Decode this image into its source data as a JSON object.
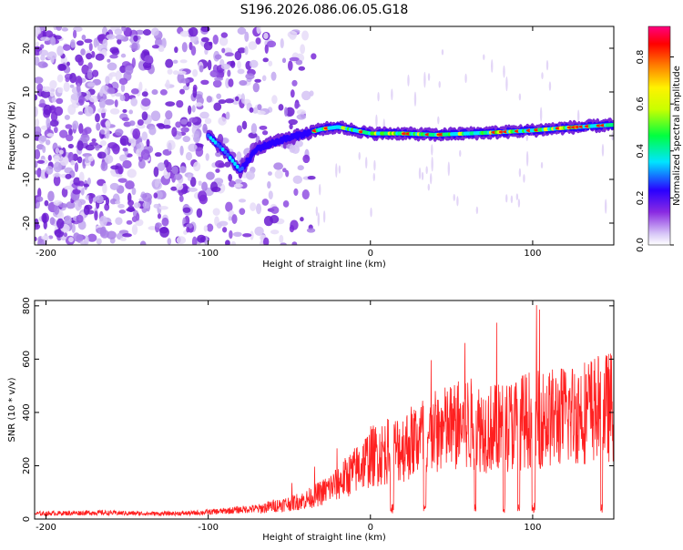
{
  "title": "S196.2026.086.06.05.G18",
  "chart_data": [
    {
      "type": "heatmap",
      "xlabel": "Height of straight line (km)",
      "ylabel": "Frequency (Hz)",
      "xlim": [
        -207,
        150
      ],
      "ylim": [
        -25,
        25
      ],
      "x_ticks": [
        -200,
        -100,
        0,
        100
      ],
      "y_ticks": [
        -20,
        -10,
        0,
        10,
        20
      ],
      "colorbar": {
        "label": "Normalized spectral amplitude",
        "range": [
          0,
          0.93
        ],
        "ticks": [
          0.0,
          0.2,
          0.4,
          0.6,
          0.8
        ],
        "colormap": [
          "#ffffff",
          "#c9b0f5",
          "#8a2be2",
          "#2a00ff",
          "#00e5ff",
          "#00ff40",
          "#fff200",
          "#ff7f00",
          "#ff0000",
          "#ff0080"
        ]
      },
      "ridge": [
        {
          "x": -100,
          "y": 0
        },
        {
          "x": -90,
          "y": -3.5
        },
        {
          "x": -80,
          "y": -8
        },
        {
          "x": -70,
          "y": -3
        },
        {
          "x": -55,
          "y": -1
        },
        {
          "x": -45,
          "y": 0
        },
        {
          "x": -30,
          "y": 1.5
        },
        {
          "x": -20,
          "y": 2
        },
        {
          "x": 0,
          "y": 0.5
        },
        {
          "x": 20,
          "y": 0.5
        },
        {
          "x": 40,
          "y": 0.2
        },
        {
          "x": 60,
          "y": 0.5
        },
        {
          "x": 80,
          "y": 0.8
        },
        {
          "x": 100,
          "y": 1.2
        },
        {
          "x": 120,
          "y": 1.8
        },
        {
          "x": 150,
          "y": 2.5
        }
      ],
      "noise_region": [
        -207,
        -35
      ]
    },
    {
      "type": "line",
      "xlabel": "Height of straight line (km)",
      "ylabel": "SNR (10 * v/v)",
      "xlim": [
        -207,
        150
      ],
      "ylim": [
        0,
        820
      ],
      "x_ticks": [
        -200,
        -100,
        0,
        100
      ],
      "y_ticks": [
        0,
        200,
        400,
        600,
        800
      ],
      "color": "#ff2020",
      "series": [
        {
          "x": [
            -207,
            -190,
            -170,
            -150,
            -130,
            -110,
            -90,
            -70,
            -60,
            -50,
            -40,
            -30,
            -20,
            -10,
            0,
            10,
            20,
            30,
            40,
            50,
            60,
            70,
            80,
            90,
            100,
            110,
            120,
            130,
            140,
            150
          ],
          "y": [
            20,
            22,
            24,
            22,
            20,
            22,
            30,
            40,
            55,
            65,
            80,
            110,
            150,
            200,
            260,
            280,
            300,
            340,
            360,
            380,
            400,
            380,
            380,
            400,
            420,
            420,
            430,
            450,
            460,
            470
          ]
        }
      ]
    }
  ]
}
